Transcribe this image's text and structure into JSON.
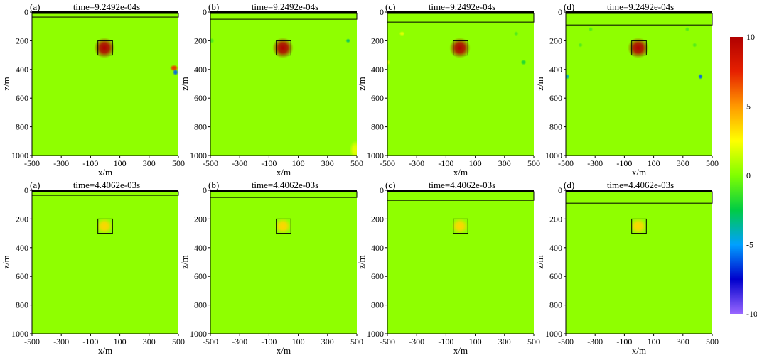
{
  "figure": {
    "rows": [
      {
        "time_label": "time=9.2492e-04s",
        "panels": [
          {
            "letter": "(a)",
            "layer_depth": 35,
            "anomalies": [
              {
                "x": -5,
                "z": 250,
                "value": 10,
                "sx": 45,
                "sz": 45
              },
              {
                "x": 470,
                "z": 390,
                "value": 7,
                "sx": 18,
                "sz": 14
              },
              {
                "x": 480,
                "z": 420,
                "value": -6,
                "sx": 12,
                "sz": 14
              }
            ]
          },
          {
            "letter": "(b)",
            "layer_depth": 50,
            "anomalies": [
              {
                "x": -5,
                "z": 250,
                "value": 10,
                "sx": 45,
                "sz": 45
              },
              {
                "x": 440,
                "z": 200,
                "value": -3,
                "sx": 10,
                "sz": 10
              },
              {
                "x": -490,
                "z": 200,
                "value": -1,
                "sx": 10,
                "sz": 12
              },
              {
                "x": 490,
                "z": 960,
                "value": 2,
                "sx": 25,
                "sz": 40
              }
            ]
          },
          {
            "letter": "(c)",
            "layer_depth": 70,
            "anomalies": [
              {
                "x": -5,
                "z": 250,
                "value": 10,
                "sx": 45,
                "sz": 45
              },
              {
                "x": -400,
                "z": 150,
                "value": 2,
                "sx": 12,
                "sz": 10
              },
              {
                "x": 380,
                "z": 150,
                "value": -1,
                "sx": 10,
                "sz": 10
              },
              {
                "x": -500,
                "z": 350,
                "value": 2,
                "sx": 12,
                "sz": 12
              },
              {
                "x": 430,
                "z": 350,
                "value": -2,
                "sx": 12,
                "sz": 12
              }
            ]
          },
          {
            "letter": "(d)",
            "layer_depth": 90,
            "anomalies": [
              {
                "x": -5,
                "z": 250,
                "value": 10,
                "sx": 45,
                "sz": 45
              },
              {
                "x": -330,
                "z": 120,
                "value": -1,
                "sx": 10,
                "sz": 10
              },
              {
                "x": 330,
                "z": 120,
                "value": -1,
                "sx": 10,
                "sz": 10
              },
              {
                "x": -400,
                "z": 230,
                "value": -1,
                "sx": 10,
                "sz": 10
              },
              {
                "x": 380,
                "z": 230,
                "value": -1,
                "sx": 10,
                "sz": 10
              },
              {
                "x": -490,
                "z": 450,
                "value": -4,
                "sx": 10,
                "sz": 12
              },
              {
                "x": 420,
                "z": 450,
                "value": -6,
                "sx": 10,
                "sz": 12
              }
            ]
          }
        ]
      },
      {
        "time_label": "time=4.4062e-03s",
        "panels": [
          {
            "letter": "(a)",
            "layer_depth": 35,
            "anomalies": [
              {
                "x": -5,
                "z": 250,
                "value": 3.5,
                "sx": 35,
                "sz": 35
              }
            ]
          },
          {
            "letter": "(b)",
            "layer_depth": 50,
            "anomalies": [
              {
                "x": -5,
                "z": 250,
                "value": 3.5,
                "sx": 35,
                "sz": 35
              }
            ]
          },
          {
            "letter": "(c)",
            "layer_depth": 70,
            "anomalies": [
              {
                "x": -5,
                "z": 250,
                "value": 3.5,
                "sx": 35,
                "sz": 35
              }
            ]
          },
          {
            "letter": "(d)",
            "layer_depth": 90,
            "anomalies": [
              {
                "x": -5,
                "z": 250,
                "value": 3.5,
                "sx": 35,
                "sz": 35
              }
            ]
          }
        ]
      }
    ],
    "target_box": {
      "x": [
        -50,
        50
      ],
      "z": [
        200,
        300
      ]
    },
    "x_ticks": [
      "-500",
      "-300",
      "-100",
      "100",
      "300",
      "500"
    ],
    "x_tick_values": [
      -500,
      -300,
      -100,
      100,
      300,
      500
    ],
    "z_ticks": [
      "0",
      "200",
      "400",
      "600",
      "800",
      "1000"
    ],
    "z_tick_values": [
      0,
      200,
      400,
      600,
      800,
      1000
    ],
    "xlabel": "x/m",
    "ylabel": "z/m",
    "xlim": [
      -500,
      500
    ],
    "zlim": [
      0,
      1000
    ],
    "background_value": 0.3
  },
  "colorbar": {
    "ticks": [
      "10",
      "5",
      "0",
      "-5",
      "-10"
    ],
    "tick_values": [
      10,
      5,
      0,
      -5,
      -10
    ],
    "range": [
      -10,
      10
    ],
    "colors": [
      "#9966ff",
      "#0000cc",
      "#00a0ff",
      "#00cc44",
      "#80ff00",
      "#ffff00",
      "#ff9900",
      "#e62000",
      "#b00000"
    ]
  },
  "chart_data": {
    "type": "heatmap",
    "xlabel": "x/m",
    "ylabel": "z/m",
    "xlim": [
      -500,
      500
    ],
    "ylim": [
      1000,
      0
    ],
    "colorbar_range": [
      -10,
      10
    ],
    "panels": [
      {
        "label": "(a)",
        "time": "time=9.2492e-04s"
      },
      {
        "label": "(b)",
        "time": "time=9.2492e-04s"
      },
      {
        "label": "(c)",
        "time": "time=9.2492e-04s"
      },
      {
        "label": "(d)",
        "time": "time=9.2492e-04s"
      },
      {
        "label": "(a)",
        "time": "time=4.4062e-03s"
      },
      {
        "label": "(b)",
        "time": "time=4.4062e-03s"
      },
      {
        "label": "(c)",
        "time": "time=4.4062e-03s"
      },
      {
        "label": "(d)",
        "time": "time=4.4062e-03s"
      }
    ]
  }
}
